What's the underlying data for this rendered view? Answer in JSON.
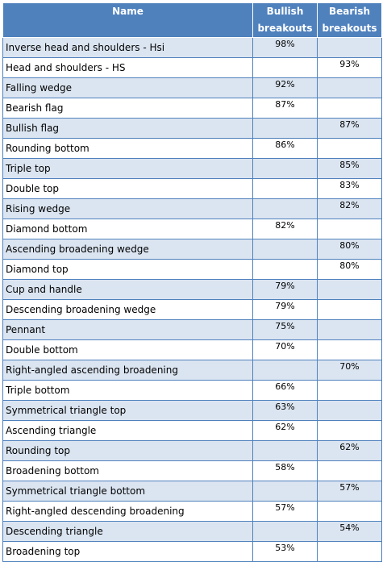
{
  "headers": {
    "name": "Name",
    "bullish": "Bullish breakouts",
    "bearish": "Bearish breakouts"
  },
  "rows": [
    {
      "name": "Inverse head and shoulders - Hsi",
      "bullish": "98%",
      "bearish": ""
    },
    {
      "name": "Head and shoulders - HS",
      "bullish": "",
      "bearish": "93%"
    },
    {
      "name": "Falling wedge",
      "bullish": "92%",
      "bearish": ""
    },
    {
      "name": "Bearish flag",
      "bullish": "87%",
      "bearish": ""
    },
    {
      "name": "Bullish flag",
      "bullish": "",
      "bearish": "87%"
    },
    {
      "name": "Rounding bottom",
      "bullish": "86%",
      "bearish": ""
    },
    {
      "name": "Triple top",
      "bullish": "",
      "bearish": "85%"
    },
    {
      "name": "Double top",
      "bullish": "",
      "bearish": "83%"
    },
    {
      "name": "Rising wedge",
      "bullish": "",
      "bearish": "82%"
    },
    {
      "name": "Diamond bottom",
      "bullish": "82%",
      "bearish": ""
    },
    {
      "name": "Ascending broadening wedge",
      "bullish": "",
      "bearish": "80%"
    },
    {
      "name": "Diamond top",
      "bullish": "",
      "bearish": "80%"
    },
    {
      "name": "Cup and handle",
      "bullish": "79%",
      "bearish": ""
    },
    {
      "name": "Descending broadening wedge",
      "bullish": "79%",
      "bearish": ""
    },
    {
      "name": "Pennant",
      "bullish": "75%",
      "bearish": ""
    },
    {
      "name": "Double bottom",
      "bullish": "70%",
      "bearish": ""
    },
    {
      "name": "Right-angled ascending broadening",
      "bullish": "",
      "bearish": "70%"
    },
    {
      "name": "Triple bottom",
      "bullish": "66%",
      "bearish": ""
    },
    {
      "name": "Symmetrical triangle top",
      "bullish": "63%",
      "bearish": ""
    },
    {
      "name": "Ascending triangle",
      "bullish": "62%",
      "bearish": ""
    },
    {
      "name": "Rounding top",
      "bullish": "",
      "bearish": "62%"
    },
    {
      "name": "Broadening bottom",
      "bullish": "58%",
      "bearish": ""
    },
    {
      "name": "Symmetrical triangle bottom",
      "bullish": "",
      "bearish": "57%"
    },
    {
      "name": "Right-angled descending broadening",
      "bullish": "57%",
      "bearish": ""
    },
    {
      "name": "Descending triangle",
      "bullish": "",
      "bearish": "54%"
    },
    {
      "name": "Broadening top",
      "bullish": "53%",
      "bearish": ""
    }
  ]
}
